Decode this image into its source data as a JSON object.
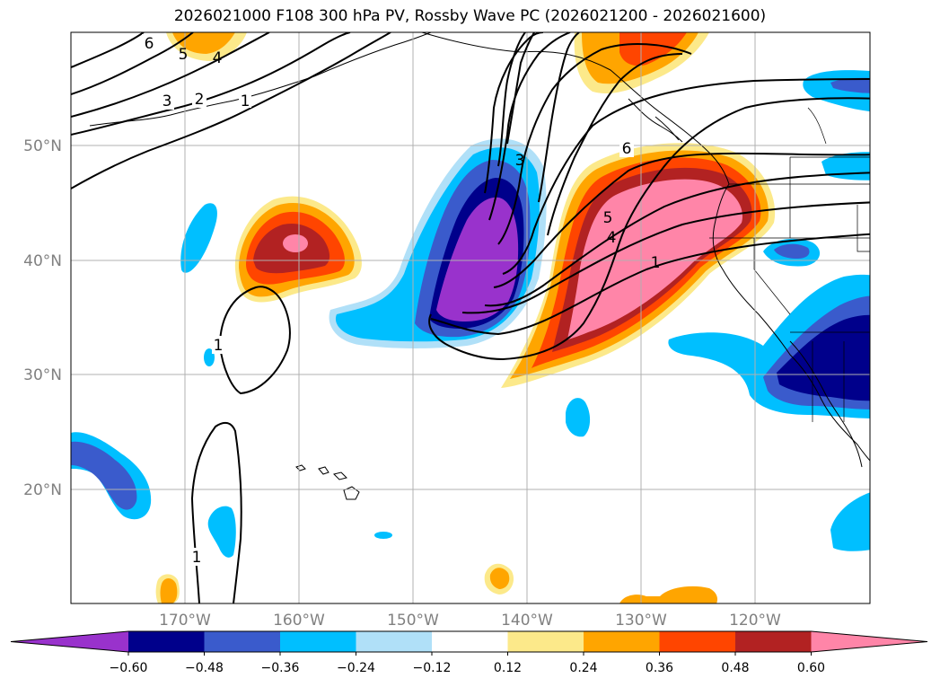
{
  "title": "2026021000 F108 300 hPa PV, Rossby Wave PC (2026021200 - 2026021600)",
  "lat_labels": [
    "50°N",
    "40°N",
    "30°N",
    "20°N"
  ],
  "lon_labels": [
    "170°W",
    "160°W",
    "150°W",
    "140°W",
    "130°W",
    "120°W"
  ],
  "colorbar": {
    "tick_labels": [
      "−0.60",
      "−0.48",
      "−0.36",
      "−0.24",
      "−0.12",
      "0.12",
      "0.24",
      "0.36",
      "0.48",
      "0.60"
    ],
    "colors": [
      "#9932cc",
      "#00008b",
      "#3a5bcc",
      "#00bfff",
      "#b0e0f8",
      "#ffffff",
      "#fce98a",
      "#ffa500",
      "#ff4500",
      "#b22222",
      "#ff85a8"
    ]
  },
  "contour_labels": [
    "6",
    "5",
    "4",
    "3",
    "2",
    "1",
    "3",
    "6",
    "5",
    "4",
    "1",
    "1",
    "1"
  ]
}
